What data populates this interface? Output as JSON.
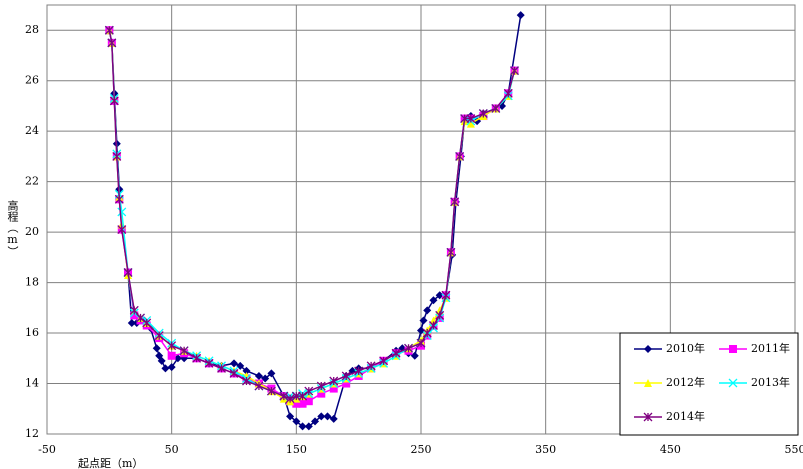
{
  "chart_data": {
    "type": "line",
    "y_label": "高程（m）",
    "x_label": "起点距（m）",
    "xlim": [
      -50,
      550
    ],
    "xticks": [
      -50,
      50,
      150,
      250,
      350,
      450,
      550
    ],
    "ylim": [
      12,
      29
    ],
    "yticks": [
      12,
      14,
      16,
      18,
      20,
      22,
      24,
      26,
      28
    ],
    "grid": true,
    "legend": "lower right",
    "series": [
      {
        "name": "2010年",
        "color": "#000080",
        "marker": "diamond",
        "x": [
          0,
          2,
          4,
          6,
          8,
          10,
          15,
          18,
          22,
          28,
          33,
          38,
          40,
          42,
          45,
          50,
          55,
          60,
          70,
          80,
          90,
          100,
          105,
          110,
          120,
          125,
          130,
          140,
          145,
          150,
          155,
          160,
          165,
          170,
          175,
          180,
          190,
          195,
          200,
          210,
          220,
          230,
          235,
          240,
          245,
          250,
          252,
          255,
          260,
          265,
          270,
          275,
          278,
          282,
          285,
          290,
          295,
          300,
          310,
          315,
          320,
          330
        ],
        "values": [
          28,
          27.5,
          25.5,
          23.5,
          21.7,
          20.2,
          18.4,
          16.4,
          16.4,
          16.5,
          16.2,
          15.4,
          15.1,
          14.9,
          14.6,
          14.65,
          15.0,
          15.0,
          15.0,
          14.8,
          14.7,
          14.8,
          14.7,
          14.5,
          14.3,
          14.2,
          14.4,
          13.5,
          12.7,
          12.5,
          12.3,
          12.3,
          12.5,
          12.7,
          12.7,
          12.6,
          14.3,
          14.5,
          14.6,
          14.6,
          14.9,
          15.3,
          15.4,
          15.2,
          15.1,
          16.1,
          16.5,
          16.9,
          17.3,
          17.5,
          17.5,
          19.1,
          21.2,
          23.0,
          24.5,
          24.6,
          24.4,
          24.7,
          24.9,
          25.0,
          25.5,
          28.6
        ]
      },
      {
        "name": "2011年",
        "color": "#ff00ff",
        "marker": "square",
        "x": [
          0,
          2,
          4,
          6,
          8,
          10,
          15,
          20,
          25,
          30,
          40,
          50,
          60,
          70,
          80,
          90,
          100,
          110,
          120,
          130,
          140,
          145,
          150,
          155,
          160,
          170,
          180,
          190,
          200,
          210,
          220,
          230,
          240,
          250,
          255,
          260,
          265,
          270,
          274,
          277,
          281,
          285,
          290,
          300,
          310,
          320,
          325
        ],
        "values": [
          28,
          27.5,
          25.2,
          23.0,
          21.3,
          20.1,
          18.4,
          16.7,
          16.5,
          16.3,
          15.8,
          15.1,
          15.2,
          15.0,
          14.8,
          14.6,
          14.4,
          14.2,
          14.0,
          13.8,
          13.5,
          13.3,
          13.2,
          13.2,
          13.3,
          13.6,
          13.8,
          14.0,
          14.3,
          14.6,
          14.9,
          15.2,
          15.3,
          15.5,
          15.9,
          16.3,
          16.6,
          17.5,
          19.2,
          21.2,
          23.0,
          24.5,
          24.5,
          24.6,
          24.9,
          25.5,
          26.4
        ]
      },
      {
        "name": "2012年",
        "color": "#ffff00",
        "marker": "triangle",
        "x": [
          0,
          2,
          4,
          6,
          8,
          10,
          15,
          20,
          25,
          30,
          40,
          50,
          60,
          70,
          80,
          90,
          100,
          110,
          120,
          130,
          140,
          145,
          150,
          155,
          160,
          170,
          180,
          190,
          200,
          210,
          220,
          230,
          240,
          250,
          255,
          260,
          265,
          270,
          274,
          277,
          281,
          285,
          290,
          300,
          310,
          320,
          325
        ],
        "values": [
          28,
          27.5,
          25.3,
          23.0,
          21.4,
          20.3,
          18.3,
          16.9,
          16.6,
          16.4,
          15.9,
          15.5,
          15.3,
          15.1,
          14.9,
          14.7,
          14.5,
          14.3,
          14.0,
          13.7,
          13.4,
          13.3,
          13.4,
          13.5,
          13.6,
          13.8,
          14.0,
          14.2,
          14.4,
          14.6,
          14.8,
          15.1,
          15.4,
          15.7,
          16.1,
          16.5,
          16.9,
          17.4,
          19.2,
          21.2,
          23.0,
          24.4,
          24.3,
          24.6,
          24.9,
          25.4,
          26.4
        ]
      },
      {
        "name": "2013年",
        "color": "#00ffff",
        "marker": "x",
        "x": [
          0,
          2,
          4,
          6,
          8,
          10,
          15,
          20,
          25,
          30,
          40,
          50,
          60,
          70,
          80,
          90,
          100,
          110,
          120,
          130,
          140,
          145,
          150,
          155,
          160,
          170,
          180,
          190,
          200,
          210,
          220,
          230,
          240,
          250,
          255,
          260,
          265,
          270,
          274,
          277,
          281,
          285,
          290,
          300,
          310,
          320,
          325
        ],
        "values": [
          28,
          27.5,
          25.3,
          23.1,
          21.5,
          20.8,
          18.4,
          16.8,
          16.6,
          16.5,
          16.0,
          15.6,
          15.3,
          15.1,
          14.9,
          14.7,
          14.5,
          14.2,
          13.9,
          13.7,
          13.5,
          13.5,
          13.5,
          13.6,
          13.6,
          13.8,
          14.0,
          14.2,
          14.4,
          14.6,
          14.8,
          15.1,
          15.4,
          15.6,
          15.9,
          16.2,
          16.6,
          17.4,
          19.2,
          21.2,
          23.0,
          24.5,
          24.4,
          24.7,
          24.9,
          25.4,
          26.4
        ]
      },
      {
        "name": "2014年",
        "color": "#800080",
        "marker": "star",
        "x": [
          0,
          2,
          4,
          6,
          8,
          10,
          15,
          20,
          25,
          30,
          40,
          50,
          60,
          70,
          80,
          90,
          100,
          110,
          120,
          130,
          140,
          145,
          150,
          155,
          160,
          170,
          180,
          190,
          200,
          210,
          220,
          230,
          240,
          250,
          255,
          260,
          265,
          270,
          274,
          277,
          281,
          285,
          290,
          300,
          310,
          320,
          325
        ],
        "values": [
          28,
          27.5,
          25.2,
          23.0,
          21.3,
          20.1,
          18.4,
          16.9,
          16.6,
          16.4,
          15.9,
          15.5,
          15.3,
          15.0,
          14.8,
          14.6,
          14.4,
          14.1,
          13.9,
          13.7,
          13.5,
          13.4,
          13.5,
          13.5,
          13.7,
          13.9,
          14.1,
          14.3,
          14.5,
          14.7,
          14.9,
          15.2,
          15.4,
          15.6,
          16.0,
          16.3,
          16.7,
          17.5,
          19.2,
          21.2,
          23.0,
          24.5,
          24.5,
          24.7,
          24.9,
          25.5,
          26.4
        ]
      }
    ]
  }
}
